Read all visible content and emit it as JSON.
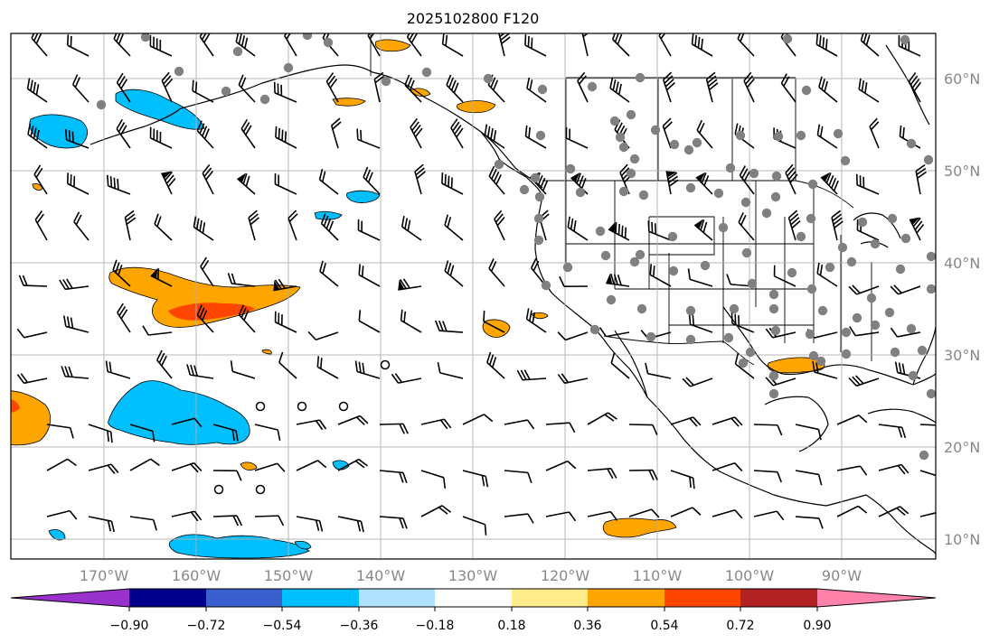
{
  "map": {
    "title": "2025102800 F120",
    "lon_labels": [
      "170°W",
      "160°W",
      "150°W",
      "140°W",
      "130°W",
      "120°W",
      "110°W",
      "100°W",
      "90°W"
    ],
    "lat_labels": [
      "60°N",
      "50°N",
      "40°N",
      "30°N",
      "20°N",
      "10°N"
    ],
    "grid": true,
    "station_color": "#808080"
  },
  "colorbar": {
    "colors": [
      "#9932cc",
      "#00008b",
      "#3a5fcd",
      "#00bfff",
      "#b0e2ff",
      "#ffffff",
      "#ffec8b",
      "#ffa500",
      "#ff4500",
      "#b22222",
      "#ff82ab"
    ],
    "tick_labels": [
      "−0.90",
      "−0.72",
      "−0.54",
      "−0.36",
      "−0.18",
      "0.18",
      "0.36",
      "0.54",
      "0.72",
      "0.90"
    ]
  }
}
